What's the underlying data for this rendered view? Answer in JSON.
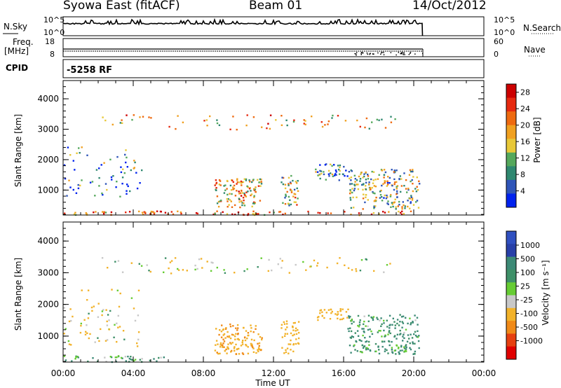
{
  "header": {
    "station": "Syowa East (fitACF)",
    "beam": "Beam 01",
    "date": "14/Oct/2012"
  },
  "params": {
    "nsky_label": "N.Sky",
    "nsearch_label": "N.Search",
    "nsky_ticks": [
      "10^5",
      "10^0"
    ],
    "nsearch_ticks": [
      "10^5",
      "10^0"
    ],
    "freq_label": "Freq.",
    "freq_unit": "[MHz]",
    "freq_ticks": [
      "18",
      "8"
    ],
    "nave_label": "Nave",
    "nave_ticks": [
      "60",
      "0"
    ],
    "cpid_label": "CPID",
    "cpid_value": "-5258 RF"
  },
  "colors": {
    "power_scale": [
      "#0022ee",
      "#2f55b8",
      "#2f8870",
      "#55a85c",
      "#e8c838",
      "#f0a020",
      "#ee6a10",
      "#e62a10",
      "#cc0000"
    ],
    "velocity_scale": [
      "#e00000",
      "#e64010",
      "#f08a18",
      "#f2b22a",
      "#c8c8c8",
      "#66cc33",
      "#3e9068",
      "#3c8a76",
      "#2840a8",
      "#3050c0"
    ]
  },
  "chart_data": [
    {
      "type": "heatmap",
      "quantity": "Power",
      "xlabel": "Time UT",
      "ylabel": "Slant Range [km]",
      "x_ticks": [
        "00:00",
        "04:00",
        "08:00",
        "12:00",
        "16:00",
        "20:00",
        "00:00"
      ],
      "xlim_hours": [
        0,
        24
      ],
      "y_ticks": [
        1000,
        2000,
        3000,
        4000
      ],
      "ylim_km": [
        180,
        4600
      ],
      "colorbar": {
        "label": "Power [dB]",
        "ticks": [
          4,
          8,
          12,
          16,
          20,
          24,
          28
        ],
        "range": [
          0,
          30
        ]
      },
      "regions": [
        {
          "t": [
            0.0,
            20.5
          ],
          "r": [
            200,
            330
          ],
          "v": 22,
          "d": 0.5
        },
        {
          "t": [
            8.6,
            11.3
          ],
          "r": [
            450,
            1400
          ],
          "v": 17,
          "d": 0.7
        },
        {
          "t": [
            12.4,
            13.4
          ],
          "r": [
            450,
            1500
          ],
          "v": 14,
          "d": 0.6
        },
        {
          "t": [
            14.3,
            16.4
          ],
          "r": [
            1350,
            1900
          ],
          "v": 8,
          "d": 0.6
        },
        {
          "t": [
            16.3,
            20.3
          ],
          "r": [
            400,
            1700
          ],
          "v": 12,
          "d": 0.6
        },
        {
          "t": [
            0.0,
            4.5
          ],
          "r": [
            700,
            2500
          ],
          "v": 8,
          "d": 0.12
        },
        {
          "t": [
            2.0,
            19.0
          ],
          "r": [
            3000,
            3500
          ],
          "v": 18,
          "d": 0.12
        }
      ]
    },
    {
      "type": "heatmap",
      "quantity": "Velocity",
      "xlabel": "Time UT",
      "ylabel": "Slant Range [km]",
      "x_ticks": [
        "00:00",
        "04:00",
        "08:00",
        "12:00",
        "16:00",
        "20:00",
        "00:00"
      ],
      "xlim_hours": [
        0,
        24
      ],
      "y_ticks": [
        1000,
        2000,
        3000,
        4000
      ],
      "ylim_km": [
        180,
        4600
      ],
      "colorbar": {
        "label": "Velocity [m s⁻¹]",
        "ticks": [
          1000,
          500,
          100,
          25,
          -25,
          -100,
          -500,
          -1000
        ]
      },
      "regions": [
        {
          "t": [
            8.6,
            11.3
          ],
          "r": [
            450,
            1400
          ],
          "v": -450,
          "d": 0.7
        },
        {
          "t": [
            12.4,
            13.4
          ],
          "r": [
            450,
            1500
          ],
          "v": -350,
          "d": 0.6
        },
        {
          "t": [
            14.3,
            16.3
          ],
          "r": [
            1500,
            1900
          ],
          "v": -250,
          "d": 0.6
        },
        {
          "t": [
            16.2,
            20.3
          ],
          "r": [
            450,
            1700
          ],
          "v": 120,
          "d": 0.6
        },
        {
          "t": [
            0.0,
            6.0
          ],
          "r": [
            200,
            400
          ],
          "v": 60,
          "d": 0.5
        },
        {
          "t": [
            0.0,
            4.5
          ],
          "r": [
            700,
            2500
          ],
          "v": -100,
          "d": 0.12
        },
        {
          "t": [
            2.0,
            19.0
          ],
          "r": [
            3000,
            3500
          ],
          "v": -80,
          "d": 0.12
        }
      ]
    }
  ]
}
